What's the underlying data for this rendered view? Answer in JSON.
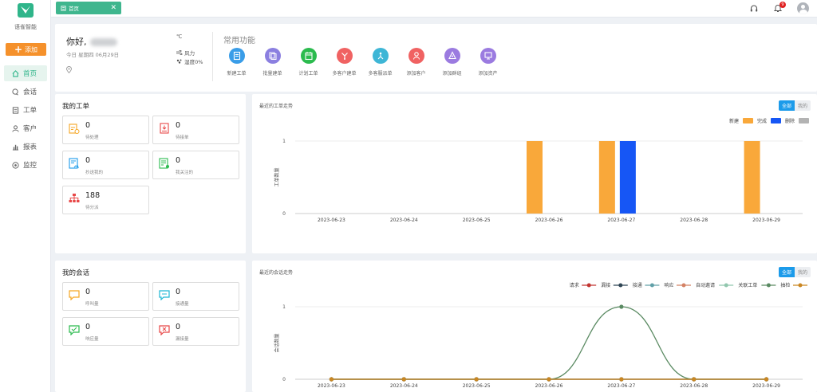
{
  "sidebar": {
    "brand": "语雀智能",
    "add_label": "添加",
    "items": [
      {
        "label": "首页",
        "icon": "home-icon",
        "active": true
      },
      {
        "label": "会话",
        "icon": "chat-icon"
      },
      {
        "label": "工单",
        "icon": "ticket-icon"
      },
      {
        "label": "客户",
        "icon": "user-icon"
      },
      {
        "label": "报表",
        "icon": "chart-icon"
      },
      {
        "label": "监控",
        "icon": "monitor-icon"
      }
    ]
  },
  "topbar": {
    "tab_label": "首页",
    "notification_count": "9"
  },
  "welcome": {
    "greeting": "你好,",
    "date": "今日 星期四 06月29日",
    "temp_unit": "℃",
    "wind": "风力",
    "humidity": "湿度0%",
    "quick_title": "常用功能",
    "quick_actions": [
      {
        "label": "新建工单",
        "color": "#3a9de8",
        "icon": "document-icon"
      },
      {
        "label": "批量建单",
        "color": "#8b7fe0",
        "icon": "batch-icon"
      },
      {
        "label": "计划工单",
        "color": "#2bbb4e",
        "icon": "calendar-icon"
      },
      {
        "label": "多客户建单",
        "color": "#f06262",
        "icon": "branch-icon"
      },
      {
        "label": "多客服派单",
        "color": "#3eb6d6",
        "icon": "dispatch-icon"
      },
      {
        "label": "添加客户",
        "color": "#f06262",
        "icon": "person-icon"
      },
      {
        "label": "添加群组",
        "color": "#9b7be0",
        "icon": "group-icon"
      },
      {
        "label": "添加资产",
        "color": "#9b7be0",
        "icon": "asset-icon"
      }
    ]
  },
  "my_tickets": {
    "title": "我的工单",
    "stats": [
      {
        "value": "0",
        "label": "待处理",
        "color": "#f5a623",
        "icon": "pending-doc-icon"
      },
      {
        "value": "0",
        "label": "待接单",
        "color": "#e84848",
        "icon": "accept-doc-icon"
      },
      {
        "value": "0",
        "label": "抄送我的",
        "color": "#1c9bea",
        "icon": "cc-doc-icon"
      },
      {
        "value": "0",
        "label": "我关注的",
        "color": "#2bbb4e",
        "icon": "follow-doc-icon"
      },
      {
        "value": "188",
        "label": "待分派",
        "color": "#e84848",
        "icon": "hierarchy-icon"
      }
    ]
  },
  "my_sessions": {
    "title": "我的会话",
    "stats": [
      {
        "value": "0",
        "label": "呼叫量",
        "color": "#f5a623",
        "icon": "call-bubble-icon"
      },
      {
        "value": "0",
        "label": "接通量",
        "color": "#1fb7d4",
        "icon": "connect-bubble-icon"
      },
      {
        "value": "0",
        "label": "响应量",
        "color": "#2bbb4e",
        "icon": "response-bubble-icon"
      },
      {
        "value": "0",
        "label": "漏接量",
        "color": "#e84848",
        "icon": "missed-bubble-icon"
      }
    ]
  },
  "ticket_chart": {
    "title": "最近的工单走势",
    "toggle_all": "全部",
    "toggle_mine": "我的",
    "ylabel": "工单数量",
    "categories": [
      "2023-06-23",
      "2023-06-24",
      "2023-06-25",
      "2023-06-26",
      "2023-06-27",
      "2023-06-28",
      "2023-06-29"
    ],
    "yticks": [
      "0",
      "1"
    ],
    "series": [
      {
        "name": "新建",
        "color": "#f9a83a",
        "values": [
          0,
          0,
          0,
          1,
          1,
          0,
          1
        ]
      },
      {
        "name": "完成",
        "color": "#1656f5",
        "values": [
          0,
          0,
          0,
          0,
          1,
          0,
          0
        ]
      },
      {
        "name": "删除",
        "color": "#b3b3b3",
        "values": [
          0,
          0,
          0,
          0,
          0,
          0,
          0
        ]
      }
    ]
  },
  "session_chart": {
    "title": "最近的会话走势",
    "toggle_all": "全部",
    "toggle_mine": "我的",
    "ylabel": "会话数量",
    "categories": [
      "2023-06-23",
      "2023-06-24",
      "2023-06-25",
      "2023-06-26",
      "2023-06-27",
      "2023-06-28",
      "2023-06-29"
    ],
    "yticks": [
      "0",
      "1"
    ],
    "series": [
      {
        "name": "请求",
        "color": "#c23531",
        "values": [
          0,
          0,
          0,
          0,
          0,
          0,
          0
        ]
      },
      {
        "name": "漏接",
        "color": "#2f4554",
        "values": [
          0,
          0,
          0,
          0,
          0,
          0,
          0
        ]
      },
      {
        "name": "接通",
        "color": "#61a0a8",
        "values": [
          0,
          0,
          0,
          0,
          0,
          0,
          0
        ]
      },
      {
        "name": "响应",
        "color": "#d48265",
        "values": [
          0,
          0,
          0,
          0,
          0,
          0,
          0
        ]
      },
      {
        "name": "自动邀请",
        "color": "#91c7ae",
        "values": [
          0,
          0,
          0,
          0,
          0,
          0,
          0
        ]
      },
      {
        "name": "关联工单",
        "color": "#5a8a62",
        "values": [
          0,
          0,
          0,
          0,
          1,
          0,
          0
        ]
      },
      {
        "name": "抽检",
        "color": "#ca8622",
        "values": [
          0,
          0,
          0,
          0,
          0,
          0,
          0
        ]
      }
    ]
  },
  "chart_data": [
    {
      "type": "bar",
      "title": "最近的工单走势",
      "ylabel": "工单数量",
      "xlabel": "",
      "ylim": [
        0,
        1
      ],
      "legend": "top-right",
      "categories": [
        "2023-06-23",
        "2023-06-24",
        "2023-06-25",
        "2023-06-26",
        "2023-06-27",
        "2023-06-28",
        "2023-06-29"
      ],
      "series": [
        {
          "name": "新建",
          "values": [
            0,
            0,
            0,
            1,
            1,
            0,
            1
          ]
        },
        {
          "name": "完成",
          "values": [
            0,
            0,
            0,
            0,
            1,
            0,
            0
          ]
        },
        {
          "name": "删除",
          "values": [
            0,
            0,
            0,
            0,
            0,
            0,
            0
          ]
        }
      ]
    },
    {
      "type": "line",
      "title": "最近的会话走势",
      "ylabel": "会话数量",
      "xlabel": "",
      "ylim": [
        0,
        1
      ],
      "legend": "top-right",
      "categories": [
        "2023-06-23",
        "2023-06-24",
        "2023-06-25",
        "2023-06-26",
        "2023-06-27",
        "2023-06-28",
        "2023-06-29"
      ],
      "series": [
        {
          "name": "请求",
          "values": [
            0,
            0,
            0,
            0,
            0,
            0,
            0
          ]
        },
        {
          "name": "漏接",
          "values": [
            0,
            0,
            0,
            0,
            0,
            0,
            0
          ]
        },
        {
          "name": "接通",
          "values": [
            0,
            0,
            0,
            0,
            0,
            0,
            0
          ]
        },
        {
          "name": "响应",
          "values": [
            0,
            0,
            0,
            0,
            0,
            0,
            0
          ]
        },
        {
          "name": "自动邀请",
          "values": [
            0,
            0,
            0,
            0,
            0,
            0,
            0
          ]
        },
        {
          "name": "关联工单",
          "values": [
            0,
            0,
            0,
            0,
            1,
            0,
            0
          ]
        },
        {
          "name": "抽检",
          "values": [
            0,
            0,
            0,
            0,
            0,
            0,
            0
          ]
        }
      ]
    }
  ]
}
